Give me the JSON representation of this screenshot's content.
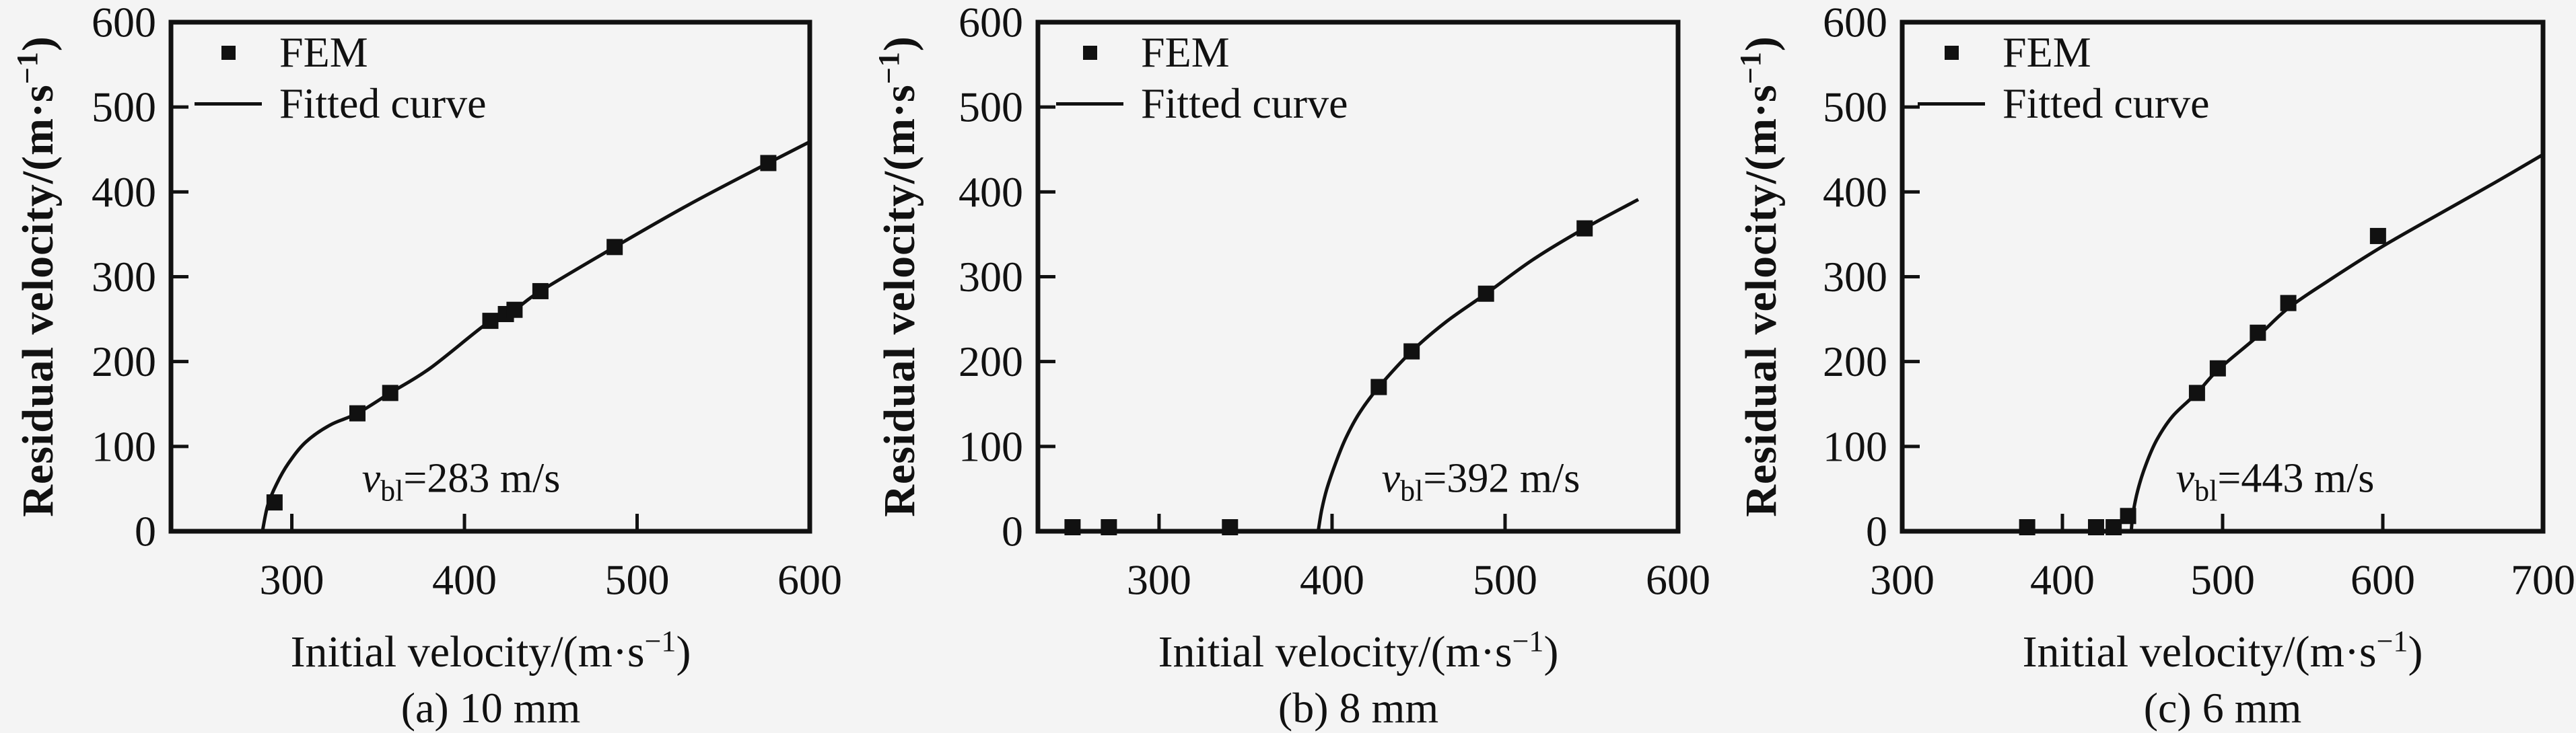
{
  "figure": {
    "background": "#f4f4f4",
    "ink": "#111111",
    "description": "Residual velocity versus initial velocity curves for three target thicknesses"
  },
  "legend": {
    "fem": "FEM",
    "fitted": "Fitted curve"
  },
  "axes": {
    "y_label_pre": "Residual velocity/(m·s",
    "y_label_sup": "−1",
    "y_label_post": ")",
    "x_label_pre": "Initial velocity/(m·s",
    "x_label_sup": "−1",
    "x_label_post": ")"
  },
  "chart_data": [
    {
      "type": "scatter",
      "caption": "(a) 10 mm",
      "thickness": "10 mm",
      "title": "",
      "xlabel": "Initial velocity/(m·s−1)",
      "ylabel": "Residual velocity/(m·s−1)",
      "x_range": [
        230,
        600
      ],
      "y_range": [
        0,
        600
      ],
      "x_ticks": [
        300,
        400,
        500,
        600
      ],
      "y_ticks": [
        0,
        100,
        200,
        300,
        400,
        500,
        600
      ],
      "grid": "off",
      "legend_position": "top-left-inside",
      "ballistic_limit_mps": 283,
      "annotation": {
        "var": "v",
        "sub": "bl",
        "rest": "=283 m/s"
      },
      "series": [
        {
          "name": "FEM",
          "type": "scatter",
          "points": [
            [
              290,
              34
            ],
            [
              338,
              139
            ],
            [
              357,
              163
            ],
            [
              415,
              248
            ],
            [
              424,
              256
            ],
            [
              429,
              261
            ],
            [
              444,
              283
            ],
            [
              487,
              335
            ],
            [
              576,
              434
            ]
          ]
        },
        {
          "name": "Fitted curve",
          "type": "line",
          "points": [
            [
              283,
              0
            ],
            [
              286,
              30
            ],
            [
              291,
              55
            ],
            [
              298,
              80
            ],
            [
              308,
              105
            ],
            [
              322,
              125
            ],
            [
              338,
              139
            ],
            [
              357,
              163
            ],
            [
              380,
              192
            ],
            [
              415,
              248
            ],
            [
              429,
              261
            ],
            [
              444,
              283
            ],
            [
              487,
              335
            ],
            [
              530,
              385
            ],
            [
              576,
              434
            ],
            [
              600,
              459
            ]
          ]
        }
      ]
    },
    {
      "type": "scatter",
      "caption": "(b) 8 mm",
      "thickness": "8 mm",
      "title": "",
      "xlabel": "Initial velocity/(m·s−1)",
      "ylabel": "Residual velocity/(m·s−1)",
      "x_range": [
        230,
        600
      ],
      "y_range": [
        0,
        600
      ],
      "x_ticks": [
        300,
        400,
        500,
        600
      ],
      "y_ticks": [
        0,
        100,
        200,
        300,
        400,
        500,
        600
      ],
      "grid": "off",
      "legend_position": "top-left-inside",
      "ballistic_limit_mps": 392,
      "annotation": {
        "var": "v",
        "sub": "bl",
        "rest": "=392 m/s"
      },
      "series": [
        {
          "name": "FEM",
          "type": "scatter",
          "points": [
            [
              250,
              0
            ],
            [
              271,
              0
            ],
            [
              341,
              0
            ],
            [
              427,
              170
            ],
            [
              446,
              212
            ],
            [
              489,
              280
            ],
            [
              546,
              357
            ]
          ]
        },
        {
          "name": "Fitted curve",
          "type": "line",
          "points": [
            [
              392,
              0
            ],
            [
              394,
              25
            ],
            [
              397,
              50
            ],
            [
              402,
              80
            ],
            [
              408,
              110
            ],
            [
              416,
              140
            ],
            [
              427,
              170
            ],
            [
              446,
              212
            ],
            [
              466,
              247
            ],
            [
              489,
              280
            ],
            [
              516,
              320
            ],
            [
              546,
              357
            ],
            [
              577,
              391
            ]
          ]
        }
      ]
    },
    {
      "type": "scatter",
      "caption": "(c) 6 mm",
      "thickness": "6 mm",
      "title": "",
      "xlabel": "Initial velocity/(m·s−1)",
      "ylabel": "Residual velocity/(m·s−1)",
      "x_range": [
        300,
        700
      ],
      "y_range": [
        0,
        600
      ],
      "x_ticks": [
        300,
        400,
        500,
        600,
        700
      ],
      "y_ticks": [
        0,
        100,
        200,
        300,
        400,
        500,
        600
      ],
      "grid": "off",
      "legend_position": "top-left-inside",
      "ballistic_limit_mps": 443,
      "annotation": {
        "var": "v",
        "sub": "bl",
        "rest": "=443 m/s"
      },
      "series": [
        {
          "name": "FEM",
          "type": "scatter",
          "points": [
            [
              378,
              0
            ],
            [
              421,
              0
            ],
            [
              432,
              0
            ],
            [
              441,
              18
            ],
            [
              484,
              163
            ],
            [
              497,
              192
            ],
            [
              522,
              234
            ],
            [
              541,
              269
            ],
            [
              597,
              348
            ]
          ]
        },
        {
          "name": "Fitted curve",
          "type": "line",
          "points": [
            [
              443,
              0
            ],
            [
              444,
              20
            ],
            [
              447,
              48
            ],
            [
              452,
              78
            ],
            [
              459,
              108
            ],
            [
              469,
              136
            ],
            [
              484,
              163
            ],
            [
              497,
              190
            ],
            [
              522,
              230
            ],
            [
              541,
              263
            ],
            [
              565,
              294
            ],
            [
              600,
              336
            ],
            [
              640,
              379
            ],
            [
              670,
              411
            ],
            [
              700,
              444
            ]
          ]
        }
      ]
    }
  ]
}
